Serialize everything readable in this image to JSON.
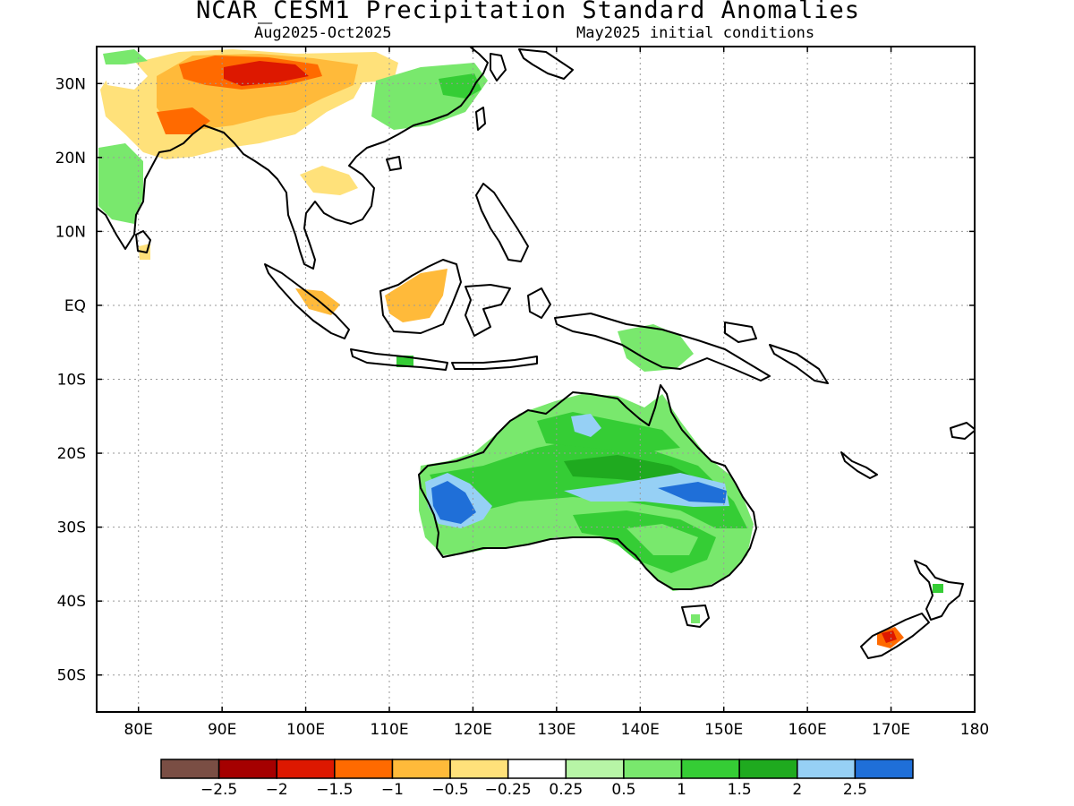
{
  "header": {
    "title": "NCAR_CESM1 Precipitation Standard Anomalies",
    "period": "Aug2025-Oct2025",
    "initial_conditions": "May2025 initial conditions"
  },
  "map": {
    "lon_range": [
      75,
      180
    ],
    "lat_range": [
      -55,
      35
    ],
    "lon_ticks": [
      {
        "value": 80,
        "label": "80E"
      },
      {
        "value": 90,
        "label": "90E"
      },
      {
        "value": 100,
        "label": "100E"
      },
      {
        "value": 110,
        "label": "110E"
      },
      {
        "value": 120,
        "label": "120E"
      },
      {
        "value": 130,
        "label": "130E"
      },
      {
        "value": 140,
        "label": "140E"
      },
      {
        "value": 150,
        "label": "150E"
      },
      {
        "value": 160,
        "label": "160E"
      },
      {
        "value": 170,
        "label": "170E"
      },
      {
        "value": 180,
        "label": "180"
      }
    ],
    "lat_ticks": [
      {
        "value": 30,
        "label": "30N"
      },
      {
        "value": 20,
        "label": "20N"
      },
      {
        "value": 10,
        "label": "10N"
      },
      {
        "value": 0,
        "label": "EQ"
      },
      {
        "value": -10,
        "label": "10S"
      },
      {
        "value": -20,
        "label": "20S"
      },
      {
        "value": -30,
        "label": "30S"
      },
      {
        "value": -40,
        "label": "40S"
      },
      {
        "value": -50,
        "label": "50S"
      }
    ],
    "grid": "dotted"
  },
  "colorbar": {
    "colors": [
      "#7a4e44",
      "#a50000",
      "#dd1800",
      "#ff6a00",
      "#ffba3a",
      "#ffe17a",
      "#ffffff",
      "#b7f5a6",
      "#79e86d",
      "#35cd35",
      "#1faa1f",
      "#96d0f5",
      "#1f6fd8"
    ],
    "labels": [
      "-2.5",
      "-2",
      "-1.5",
      "-1",
      "-0.5",
      "-0.25",
      "0.25",
      "0.5",
      "1",
      "1.5",
      "2",
      "2.5"
    ]
  }
}
